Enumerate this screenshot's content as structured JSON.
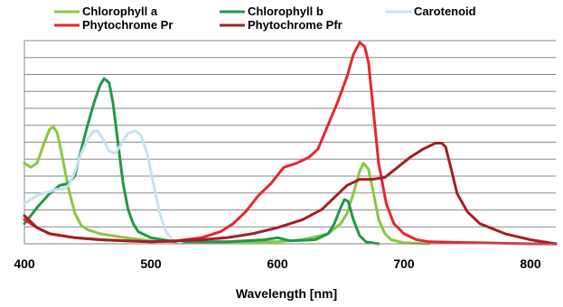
{
  "chart_data": {
    "type": "line",
    "title": "",
    "xlabel": "Wavelength [nm]",
    "ylabel": "",
    "xlim": [
      400,
      820
    ],
    "ylim": [
      0,
      1.0
    ],
    "x_ticks": [
      400,
      500,
      600,
      700,
      800
    ],
    "y_gridlines": 12,
    "grid": true,
    "legend_position": "top",
    "series": [
      {
        "name": "Chlorophyll a",
        "color": "#8cc63f",
        "points": [
          [
            400,
            0.4
          ],
          [
            405,
            0.38
          ],
          [
            410,
            0.4
          ],
          [
            415,
            0.49
          ],
          [
            420,
            0.57
          ],
          [
            423,
            0.58
          ],
          [
            426,
            0.55
          ],
          [
            430,
            0.43
          ],
          [
            435,
            0.27
          ],
          [
            440,
            0.15
          ],
          [
            445,
            0.09
          ],
          [
            450,
            0.07
          ],
          [
            460,
            0.05
          ],
          [
            470,
            0.04
          ],
          [
            480,
            0.03
          ],
          [
            500,
            0.015
          ],
          [
            520,
            0.01
          ],
          [
            560,
            0.01
          ],
          [
            600,
            0.01
          ],
          [
            620,
            0.02
          ],
          [
            640,
            0.05
          ],
          [
            650,
            0.1
          ],
          [
            655,
            0.15
          ],
          [
            660,
            0.25
          ],
          [
            665,
            0.36
          ],
          [
            668,
            0.4
          ],
          [
            672,
            0.37
          ],
          [
            676,
            0.25
          ],
          [
            680,
            0.12
          ],
          [
            685,
            0.05
          ],
          [
            690,
            0.02
          ],
          [
            700,
            0.005
          ],
          [
            720,
            0.0
          ]
        ]
      },
      {
        "name": "Chlorophyll b",
        "color": "#1f9a48",
        "points": [
          [
            400,
            0.1
          ],
          [
            410,
            0.18
          ],
          [
            420,
            0.25
          ],
          [
            428,
            0.29
          ],
          [
            435,
            0.3
          ],
          [
            440,
            0.34
          ],
          [
            445,
            0.47
          ],
          [
            450,
            0.59
          ],
          [
            455,
            0.7
          ],
          [
            460,
            0.79
          ],
          [
            463,
            0.82
          ],
          [
            467,
            0.8
          ],
          [
            470,
            0.7
          ],
          [
            474,
            0.5
          ],
          [
            478,
            0.3
          ],
          [
            482,
            0.17
          ],
          [
            486,
            0.1
          ],
          [
            490,
            0.06
          ],
          [
            500,
            0.03
          ],
          [
            520,
            0.01
          ],
          [
            560,
            0.01
          ],
          [
            590,
            0.02
          ],
          [
            600,
            0.03
          ],
          [
            610,
            0.015
          ],
          [
            630,
            0.02
          ],
          [
            640,
            0.05
          ],
          [
            645,
            0.1
          ],
          [
            650,
            0.18
          ],
          [
            653,
            0.22
          ],
          [
            656,
            0.21
          ],
          [
            660,
            0.12
          ],
          [
            665,
            0.04
          ],
          [
            670,
            0.01
          ],
          [
            680,
            0.0
          ]
        ]
      },
      {
        "name": "Carotenoid",
        "color": "#c5e3f0",
        "points": [
          [
            400,
            0.2
          ],
          [
            410,
            0.24
          ],
          [
            420,
            0.26
          ],
          [
            425,
            0.27
          ],
          [
            430,
            0.27
          ],
          [
            435,
            0.29
          ],
          [
            440,
            0.36
          ],
          [
            445,
            0.45
          ],
          [
            450,
            0.52
          ],
          [
            455,
            0.56
          ],
          [
            458,
            0.56
          ],
          [
            462,
            0.52
          ],
          [
            467,
            0.46
          ],
          [
            472,
            0.45
          ],
          [
            477,
            0.5
          ],
          [
            482,
            0.55
          ],
          [
            488,
            0.56
          ],
          [
            492,
            0.54
          ],
          [
            497,
            0.45
          ],
          [
            502,
            0.3
          ],
          [
            507,
            0.15
          ],
          [
            512,
            0.06
          ],
          [
            517,
            0.02
          ],
          [
            525,
            0.0
          ]
        ]
      },
      {
        "name": "Phytochrome Pr",
        "color": "#e8262e",
        "points": [
          [
            400,
            0.12
          ],
          [
            410,
            0.08
          ],
          [
            420,
            0.05
          ],
          [
            440,
            0.03
          ],
          [
            460,
            0.02
          ],
          [
            480,
            0.015
          ],
          [
            500,
            0.01
          ],
          [
            520,
            0.015
          ],
          [
            540,
            0.03
          ],
          [
            555,
            0.06
          ],
          [
            565,
            0.1
          ],
          [
            575,
            0.16
          ],
          [
            585,
            0.24
          ],
          [
            595,
            0.3
          ],
          [
            605,
            0.38
          ],
          [
            615,
            0.4
          ],
          [
            625,
            0.43
          ],
          [
            632,
            0.47
          ],
          [
            640,
            0.59
          ],
          [
            648,
            0.71
          ],
          [
            655,
            0.83
          ],
          [
            660,
            0.94
          ],
          [
            665,
            1.0
          ],
          [
            669,
            0.98
          ],
          [
            672,
            0.9
          ],
          [
            676,
            0.65
          ],
          [
            680,
            0.4
          ],
          [
            686,
            0.2
          ],
          [
            692,
            0.1
          ],
          [
            700,
            0.05
          ],
          [
            710,
            0.02
          ],
          [
            720,
            0.01
          ],
          [
            760,
            0.005
          ],
          [
            800,
            0.0
          ],
          [
            820,
            0.0
          ]
        ]
      },
      {
        "name": "Phytochrome Pfr",
        "color": "#a31f23",
        "points": [
          [
            400,
            0.14
          ],
          [
            410,
            0.08
          ],
          [
            420,
            0.05
          ],
          [
            440,
            0.03
          ],
          [
            460,
            0.02
          ],
          [
            480,
            0.015
          ],
          [
            500,
            0.01
          ],
          [
            520,
            0.015
          ],
          [
            540,
            0.02
          ],
          [
            560,
            0.03
          ],
          [
            580,
            0.05
          ],
          [
            600,
            0.08
          ],
          [
            620,
            0.12
          ],
          [
            635,
            0.17
          ],
          [
            645,
            0.23
          ],
          [
            655,
            0.29
          ],
          [
            665,
            0.32
          ],
          [
            675,
            0.32
          ],
          [
            685,
            0.33
          ],
          [
            695,
            0.38
          ],
          [
            705,
            0.43
          ],
          [
            715,
            0.47
          ],
          [
            725,
            0.5
          ],
          [
            730,
            0.5
          ],
          [
            733,
            0.48
          ],
          [
            737,
            0.38
          ],
          [
            742,
            0.25
          ],
          [
            750,
            0.16
          ],
          [
            760,
            0.1
          ],
          [
            780,
            0.05
          ],
          [
            800,
            0.02
          ],
          [
            820,
            0.0
          ]
        ]
      }
    ]
  }
}
